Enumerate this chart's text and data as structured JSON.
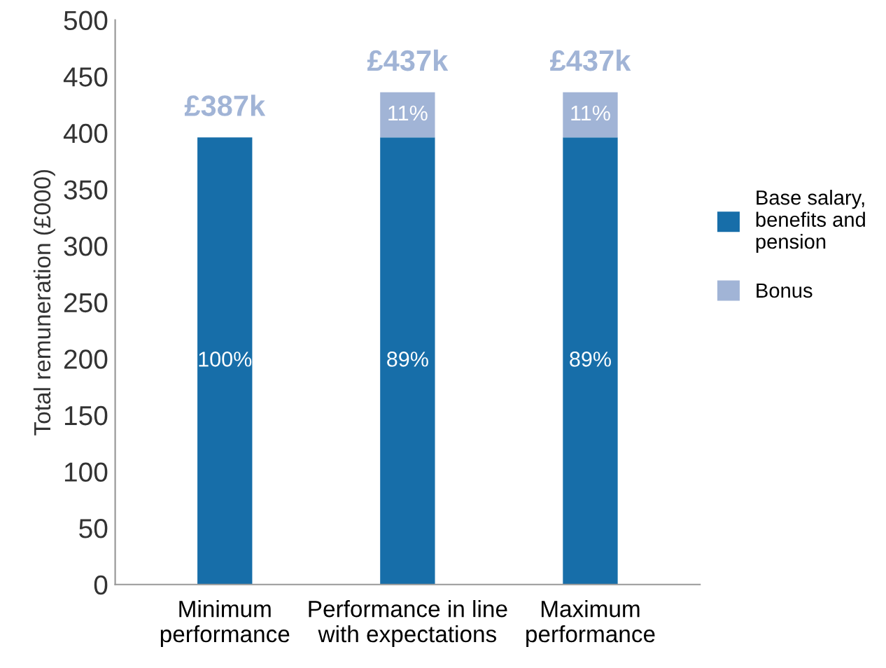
{
  "chart_data": {
    "type": "bar",
    "stacked": true,
    "ylabel": "Total remuneration (£000)",
    "categories": [
      "Minimum\nperformance",
      "Performance in line\nwith expectations",
      "Maximum\nperformance"
    ],
    "series": [
      {
        "name": "Base salary,\nbenefits and\npension",
        "color": "#176ea9",
        "values": [
          396,
          396,
          396
        ]
      },
      {
        "name": "Bonus",
        "color": "#a1b4d6",
        "values": [
          0,
          40,
          40
        ]
      }
    ],
    "annotations": [
      "100%",
      "89%",
      "89%",
      "11%",
      "11%",
      "£387k",
      "£437k",
      "£437k"
    ],
    "ylim": [
      0,
      500
    ],
    "yticks": [
      0,
      50,
      100,
      150,
      200,
      250,
      300,
      350,
      400,
      450,
      500
    ],
    "grid": false,
    "legend": "right"
  }
}
